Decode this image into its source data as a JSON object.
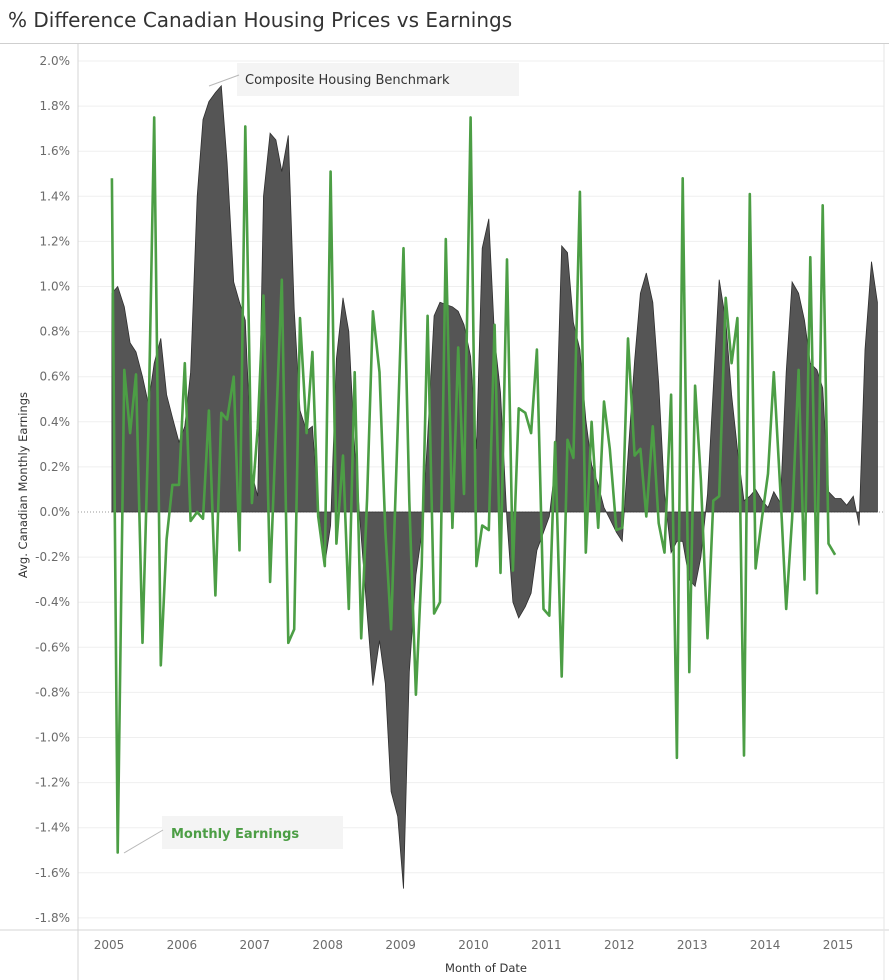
{
  "chart_data": {
    "type": "area",
    "title": "% Difference Canadian Housing Prices vs Earnings",
    "xlabel": "Month of Date",
    "ylabel": "Avg. Canadian Monthly Earnings",
    "x_tick_labels": [
      "2005",
      "2006",
      "2007",
      "2008",
      "2009",
      "2010",
      "2011",
      "2012",
      "2013",
      "2014",
      "2015"
    ],
    "y_tick_labels": [
      "2.0%",
      "1.8%",
      "1.6%",
      "1.4%",
      "1.2%",
      "1.0%",
      "0.8%",
      "0.6%",
      "0.4%",
      "0.2%",
      "0.0%",
      "-0.2%",
      "-0.4%",
      "-0.6%",
      "-0.8%",
      "-1.0%",
      "-1.2%",
      "-1.4%",
      "-1.6%",
      "-1.8%"
    ],
    "ylim": [
      -1.85,
      2.05
    ],
    "xlim": [
      2004.55,
      2015.68
    ],
    "grid": "horizontal",
    "zero_line": "dotted",
    "series": [
      {
        "name": "Composite Housing Benchmark",
        "style": "area",
        "color": "#555555",
        "points": [
          [
            2005.04,
            0.97
          ],
          [
            2005.12,
            1.0
          ],
          [
            2005.21,
            0.91
          ],
          [
            2005.29,
            0.75
          ],
          [
            2005.37,
            0.71
          ],
          [
            2005.46,
            0.6
          ],
          [
            2005.54,
            0.48
          ],
          [
            2005.62,
            0.66
          ],
          [
            2005.71,
            0.77
          ],
          [
            2005.79,
            0.52
          ],
          [
            2005.87,
            0.42
          ],
          [
            2005.96,
            0.31
          ],
          [
            2006.04,
            0.38
          ],
          [
            2006.12,
            0.62
          ],
          [
            2006.21,
            1.4
          ],
          [
            2006.29,
            1.74
          ],
          [
            2006.37,
            1.82
          ],
          [
            2006.46,
            1.86
          ],
          [
            2006.54,
            1.89
          ],
          [
            2006.62,
            1.55
          ],
          [
            2006.71,
            1.02
          ],
          [
            2006.79,
            0.93
          ],
          [
            2006.87,
            0.85
          ],
          [
            2006.96,
            0.17
          ],
          [
            2007.04,
            0.07
          ],
          [
            2007.12,
            1.4
          ],
          [
            2007.21,
            1.68
          ],
          [
            2007.29,
            1.65
          ],
          [
            2007.37,
            1.51
          ],
          [
            2007.46,
            1.67
          ],
          [
            2007.54,
            0.9
          ],
          [
            2007.62,
            0.45
          ],
          [
            2007.71,
            0.36
          ],
          [
            2007.79,
            0.38
          ],
          [
            2007.87,
            0.02
          ],
          [
            2007.96,
            -0.23
          ],
          [
            2008.04,
            -0.06
          ],
          [
            2008.12,
            0.68
          ],
          [
            2008.21,
            0.95
          ],
          [
            2008.29,
            0.8
          ],
          [
            2008.37,
            0.28
          ],
          [
            2008.46,
            -0.11
          ],
          [
            2008.54,
            -0.45
          ],
          [
            2008.62,
            -0.77
          ],
          [
            2008.71,
            -0.57
          ],
          [
            2008.79,
            -0.76
          ],
          [
            2008.87,
            -1.24
          ],
          [
            2008.96,
            -1.35
          ],
          [
            2009.04,
            -1.67
          ],
          [
            2009.12,
            -0.71
          ],
          [
            2009.21,
            -0.28
          ],
          [
            2009.29,
            -0.1
          ],
          [
            2009.37,
            0.33
          ],
          [
            2009.46,
            0.87
          ],
          [
            2009.54,
            0.93
          ],
          [
            2009.62,
            0.92
          ],
          [
            2009.71,
            0.91
          ],
          [
            2009.79,
            0.89
          ],
          [
            2009.87,
            0.83
          ],
          [
            2009.96,
            0.69
          ],
          [
            2010.04,
            0.28
          ],
          [
            2010.12,
            1.17
          ],
          [
            2010.21,
            1.3
          ],
          [
            2010.29,
            0.77
          ],
          [
            2010.37,
            0.53
          ],
          [
            2010.46,
            -0.04
          ],
          [
            2010.54,
            -0.4
          ],
          [
            2010.62,
            -0.47
          ],
          [
            2010.71,
            -0.42
          ],
          [
            2010.79,
            -0.36
          ],
          [
            2010.87,
            -0.17
          ],
          [
            2010.96,
            -0.09
          ],
          [
            2011.04,
            -0.02
          ],
          [
            2011.12,
            0.2
          ],
          [
            2011.21,
            1.18
          ],
          [
            2011.29,
            1.15
          ],
          [
            2011.37,
            0.84
          ],
          [
            2011.46,
            0.72
          ],
          [
            2011.54,
            0.41
          ],
          [
            2011.62,
            0.21
          ],
          [
            2011.71,
            0.12
          ],
          [
            2011.79,
            0.02
          ],
          [
            2011.87,
            -0.03
          ],
          [
            2011.96,
            -0.09
          ],
          [
            2012.04,
            -0.13
          ],
          [
            2012.12,
            0.25
          ],
          [
            2012.21,
            0.67
          ],
          [
            2012.29,
            0.97
          ],
          [
            2012.37,
            1.06
          ],
          [
            2012.46,
            0.93
          ],
          [
            2012.54,
            0.57
          ],
          [
            2012.62,
            0.08
          ],
          [
            2012.71,
            -0.18
          ],
          [
            2012.79,
            -0.13
          ],
          [
            2012.87,
            -0.13
          ],
          [
            2012.96,
            -0.3
          ],
          [
            2013.04,
            -0.33
          ],
          [
            2013.12,
            -0.2
          ],
          [
            2013.21,
            0.08
          ],
          [
            2013.29,
            0.55
          ],
          [
            2013.37,
            1.03
          ],
          [
            2013.46,
            0.85
          ],
          [
            2013.54,
            0.52
          ],
          [
            2013.62,
            0.28
          ],
          [
            2013.71,
            0.05
          ],
          [
            2013.79,
            0.07
          ],
          [
            2013.87,
            0.1
          ],
          [
            2013.96,
            0.05
          ],
          [
            2014.04,
            0.02
          ],
          [
            2014.12,
            0.09
          ],
          [
            2014.21,
            0.04
          ],
          [
            2014.29,
            0.62
          ],
          [
            2014.37,
            1.02
          ],
          [
            2014.46,
            0.97
          ],
          [
            2014.54,
            0.85
          ],
          [
            2014.62,
            0.66
          ],
          [
            2014.71,
            0.63
          ],
          [
            2014.79,
            0.55
          ],
          [
            2014.87,
            0.09
          ],
          [
            2014.96,
            0.06
          ],
          [
            2015.04,
            0.06
          ],
          [
            2015.12,
            0.03
          ],
          [
            2015.21,
            0.07
          ],
          [
            2015.29,
            -0.06
          ],
          [
            2015.37,
            0.72
          ],
          [
            2015.46,
            1.11
          ],
          [
            2015.54,
            0.93
          ]
        ]
      },
      {
        "name": "Monthly Earnings",
        "style": "line",
        "color": "#4c9e45",
        "points": [
          [
            2005.04,
            1.48
          ],
          [
            2005.12,
            -1.51
          ],
          [
            2005.21,
            0.63
          ],
          [
            2005.29,
            0.35
          ],
          [
            2005.37,
            0.61
          ],
          [
            2005.46,
            -0.58
          ],
          [
            2005.54,
            0.36
          ],
          [
            2005.62,
            1.75
          ],
          [
            2005.71,
            -0.68
          ],
          [
            2005.79,
            -0.12
          ],
          [
            2005.87,
            0.12
          ],
          [
            2005.96,
            0.12
          ],
          [
            2006.04,
            0.66
          ],
          [
            2006.12,
            -0.04
          ],
          [
            2006.21,
            0.0
          ],
          [
            2006.29,
            -0.03
          ],
          [
            2006.37,
            0.45
          ],
          [
            2006.46,
            -0.37
          ],
          [
            2006.54,
            0.44
          ],
          [
            2006.62,
            0.41
          ],
          [
            2006.71,
            0.6
          ],
          [
            2006.79,
            -0.17
          ],
          [
            2006.87,
            1.71
          ],
          [
            2006.96,
            0.04
          ],
          [
            2007.04,
            0.37
          ],
          [
            2007.12,
            0.96
          ],
          [
            2007.21,
            -0.31
          ],
          [
            2007.29,
            0.36
          ],
          [
            2007.37,
            1.03
          ],
          [
            2007.46,
            -0.58
          ],
          [
            2007.54,
            -0.52
          ],
          [
            2007.62,
            0.86
          ],
          [
            2007.71,
            0.35
          ],
          [
            2007.79,
            0.71
          ],
          [
            2007.87,
            -0.02
          ],
          [
            2007.96,
            -0.24
          ],
          [
            2008.04,
            1.51
          ],
          [
            2008.12,
            -0.14
          ],
          [
            2008.21,
            0.25
          ],
          [
            2008.29,
            -0.43
          ],
          [
            2008.37,
            0.62
          ],
          [
            2008.46,
            -0.56
          ],
          [
            2008.54,
            0.06
          ],
          [
            2008.62,
            0.89
          ],
          [
            2008.71,
            0.62
          ],
          [
            2008.79,
            -0.08
          ],
          [
            2008.87,
            -0.52
          ],
          [
            2008.96,
            0.37
          ],
          [
            2009.04,
            1.17
          ],
          [
            2009.12,
            0.05
          ],
          [
            2009.21,
            -0.81
          ],
          [
            2009.29,
            -0.24
          ],
          [
            2009.37,
            0.87
          ],
          [
            2009.46,
            -0.45
          ],
          [
            2009.54,
            -0.4
          ],
          [
            2009.62,
            1.21
          ],
          [
            2009.71,
            -0.07
          ],
          [
            2009.79,
            0.73
          ],
          [
            2009.87,
            0.08
          ],
          [
            2009.96,
            1.75
          ],
          [
            2010.04,
            -0.24
          ],
          [
            2010.12,
            -0.06
          ],
          [
            2010.21,
            -0.08
          ],
          [
            2010.29,
            0.83
          ],
          [
            2010.37,
            -0.27
          ],
          [
            2010.46,
            1.12
          ],
          [
            2010.54,
            -0.26
          ],
          [
            2010.62,
            0.46
          ],
          [
            2010.71,
            0.44
          ],
          [
            2010.79,
            0.35
          ],
          [
            2010.87,
            0.72
          ],
          [
            2010.96,
            -0.43
          ],
          [
            2011.04,
            -0.46
          ],
          [
            2011.12,
            0.31
          ],
          [
            2011.21,
            -0.73
          ],
          [
            2011.29,
            0.32
          ],
          [
            2011.37,
            0.24
          ],
          [
            2011.46,
            1.42
          ],
          [
            2011.54,
            -0.18
          ],
          [
            2011.62,
            0.4
          ],
          [
            2011.71,
            -0.07
          ],
          [
            2011.79,
            0.49
          ],
          [
            2011.87,
            0.28
          ],
          [
            2011.96,
            -0.08
          ],
          [
            2012.04,
            -0.07
          ],
          [
            2012.12,
            0.77
          ],
          [
            2012.21,
            0.25
          ],
          [
            2012.29,
            0.28
          ],
          [
            2012.37,
            -0.02
          ],
          [
            2012.46,
            0.38
          ],
          [
            2012.54,
            -0.05
          ],
          [
            2012.62,
            -0.18
          ],
          [
            2012.71,
            0.52
          ],
          [
            2012.79,
            -1.09
          ],
          [
            2012.87,
            1.48
          ],
          [
            2012.96,
            -0.71
          ],
          [
            2013.04,
            0.56
          ],
          [
            2013.12,
            0.14
          ],
          [
            2013.21,
            -0.56
          ],
          [
            2013.29,
            0.05
          ],
          [
            2013.37,
            0.07
          ],
          [
            2013.46,
            0.95
          ],
          [
            2013.54,
            0.66
          ],
          [
            2013.62,
            0.86
          ],
          [
            2013.71,
            -1.08
          ],
          [
            2013.79,
            1.41
          ],
          [
            2013.87,
            -0.25
          ],
          [
            2013.96,
            -0.02
          ],
          [
            2014.04,
            0.17
          ],
          [
            2014.12,
            0.62
          ],
          [
            2014.21,
            0.09
          ],
          [
            2014.29,
            -0.43
          ],
          [
            2014.37,
            -0.03
          ],
          [
            2014.46,
            0.63
          ],
          [
            2014.54,
            -0.3
          ],
          [
            2014.62,
            1.13
          ],
          [
            2014.71,
            -0.36
          ],
          [
            2014.79,
            1.36
          ],
          [
            2014.87,
            -0.14
          ],
          [
            2014.96,
            -0.19
          ]
        ]
      }
    ],
    "annotations": [
      {
        "text": "Composite Housing Benchmark",
        "series": "Composite Housing Benchmark"
      },
      {
        "text": "Monthly Earnings",
        "series": "Monthly Earnings"
      }
    ]
  }
}
